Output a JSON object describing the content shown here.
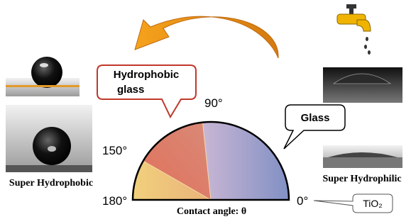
{
  "callouts": {
    "hydrophobic_glass": [
      "Hydrophobic",
      "glass"
    ],
    "glass": "Glass",
    "tio2": "TiO₂"
  },
  "angles": {
    "a90": "90°",
    "a150": "150°",
    "a180": "180°",
    "a0": "0°"
  },
  "labels": {
    "super_hydrophobic": "Super Hydrophobic",
    "super_hydrophilic": "Super Hydrophilic",
    "axis": "Contact angle: θ"
  }
}
